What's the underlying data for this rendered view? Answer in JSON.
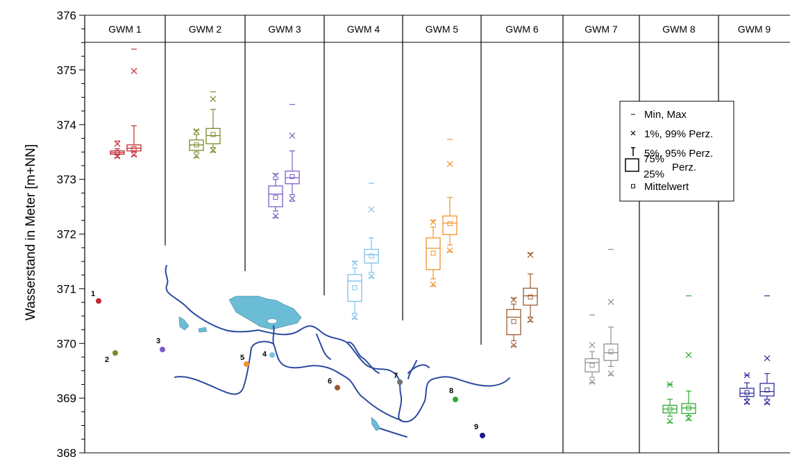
{
  "chart_data": {
    "type": "box",
    "ylabel": "Wasserstand in Meter [m+NN]",
    "ylim": [
      368,
      376
    ],
    "yticks": [
      "368",
      "369",
      "370",
      "371",
      "372",
      "373",
      "374",
      "375",
      "376"
    ],
    "panels": [
      {
        "name": "GWM 1",
        "color": "#c0272d",
        "boxes": [
          {
            "min": 373.4,
            "p1": 373.42,
            "p5": 373.45,
            "q1": 373.46,
            "median": 373.49,
            "q3": 373.52,
            "p95": 373.56,
            "p99": 373.65,
            "max": 373.7,
            "mean": 373.49
          },
          {
            "min": 373.43,
            "p1": 373.45,
            "p5": 373.5,
            "q1": 373.52,
            "median": 373.57,
            "q3": 373.63,
            "p95": 373.98,
            "p99": 374.98,
            "max": 375.38,
            "mean": 373.56
          }
        ]
      },
      {
        "name": "GWM 2",
        "color": "#7a8c2a",
        "boxes": [
          {
            "min": 373.4,
            "p1": 373.43,
            "p5": 373.5,
            "q1": 373.53,
            "median": 373.63,
            "q3": 373.72,
            "p95": 373.82,
            "p99": 373.88,
            "max": 373.9,
            "mean": 373.63
          },
          {
            "min": 373.5,
            "p1": 373.53,
            "p5": 373.58,
            "q1": 373.65,
            "median": 373.8,
            "q3": 373.93,
            "p95": 374.28,
            "p99": 374.47,
            "max": 374.6,
            "mean": 373.82
          }
        ]
      },
      {
        "name": "GWM 3",
        "color": "#7a5cc8",
        "boxes": [
          {
            "min": 372.3,
            "p1": 372.33,
            "p5": 372.42,
            "q1": 372.5,
            "median": 372.73,
            "q3": 372.88,
            "p95": 373.0,
            "p99": 373.07,
            "max": 373.1,
            "mean": 372.67
          },
          {
            "min": 372.6,
            "p1": 372.65,
            "p5": 372.72,
            "q1": 372.92,
            "median": 373.03,
            "q3": 373.15,
            "p95": 373.52,
            "p99": 373.8,
            "max": 374.37,
            "mean": 373.05
          }
        ]
      },
      {
        "name": "GWM 4",
        "color": "#7cc0e8",
        "boxes": [
          {
            "min": 370.45,
            "p1": 370.48,
            "p5": 370.55,
            "q1": 370.77,
            "median": 371.14,
            "q3": 371.26,
            "p95": 371.38,
            "p99": 371.47,
            "max": 371.5,
            "mean": 371.02
          },
          {
            "min": 371.2,
            "p1": 371.23,
            "p5": 371.3,
            "q1": 371.47,
            "median": 371.62,
            "q3": 371.72,
            "p95": 371.93,
            "p99": 372.45,
            "max": 372.93,
            "mean": 371.6
          }
        ]
      },
      {
        "name": "GWM 5",
        "color": "#f0922a",
        "boxes": [
          {
            "min": 371.05,
            "p1": 371.08,
            "p5": 371.18,
            "q1": 371.35,
            "median": 371.74,
            "q3": 371.93,
            "p95": 372.13,
            "p99": 372.22,
            "max": 372.25,
            "mean": 371.65
          },
          {
            "min": 371.68,
            "p1": 371.7,
            "p5": 371.8,
            "q1": 371.99,
            "median": 372.2,
            "q3": 372.33,
            "p95": 372.67,
            "p99": 373.28,
            "max": 373.73,
            "mean": 372.19
          }
        ]
      },
      {
        "name": "GWM 6",
        "color": "#9c5a2c",
        "boxes": [
          {
            "min": 369.95,
            "p1": 369.97,
            "p5": 370.05,
            "q1": 370.16,
            "median": 370.48,
            "q3": 370.62,
            "p95": 370.72,
            "p99": 370.8,
            "max": 370.83,
            "mean": 370.4
          },
          {
            "min": 370.4,
            "p1": 370.43,
            "p5": 370.48,
            "q1": 370.7,
            "median": 370.87,
            "q3": 371.01,
            "p95": 371.27,
            "p99": 371.62,
            "max": 371.65,
            "mean": 370.85
          }
        ]
      },
      {
        "name": "GWM 7",
        "color": "#909090",
        "boxes": [
          {
            "min": 369.28,
            "p1": 369.3,
            "p5": 369.38,
            "q1": 369.48,
            "median": 369.65,
            "q3": 369.72,
            "p95": 369.85,
            "p99": 369.97,
            "max": 370.52,
            "mean": 369.6
          },
          {
            "min": 369.42,
            "p1": 369.45,
            "p5": 369.58,
            "q1": 369.69,
            "median": 369.83,
            "q3": 369.99,
            "p95": 370.3,
            "p99": 370.76,
            "max": 371.72,
            "mean": 369.85
          }
        ]
      },
      {
        "name": "GWM 8",
        "color": "#2ea82e",
        "boxes": [
          {
            "min": 368.55,
            "p1": 368.58,
            "p5": 368.67,
            "q1": 368.73,
            "median": 368.8,
            "q3": 368.87,
            "p95": 368.98,
            "p99": 369.25,
            "max": 369.25,
            "mean": 368.8
          },
          {
            "min": 368.6,
            "p1": 368.63,
            "p5": 368.68,
            "q1": 368.72,
            "median": 368.82,
            "q3": 368.9,
            "p95": 369.13,
            "p99": 369.79,
            "max": 370.87,
            "mean": 368.82
          }
        ]
      },
      {
        "name": "GWM 9",
        "color": "#2c2c9c",
        "boxes": [
          {
            "min": 368.9,
            "p1": 368.93,
            "p5": 368.98,
            "q1": 369.03,
            "median": 369.09,
            "q3": 369.18,
            "p95": 369.28,
            "p99": 369.42,
            "max": 369.42,
            "mean": 369.1
          },
          {
            "min": 368.9,
            "p1": 368.92,
            "p5": 368.98,
            "q1": 369.04,
            "median": 369.12,
            "q3": 369.27,
            "p95": 369.45,
            "p99": 369.73,
            "max": 370.87,
            "mean": 369.15
          }
        ]
      }
    ],
    "legend": {
      "position": "right",
      "entries": [
        {
          "symbol": "–",
          "label": "Min, Max"
        },
        {
          "symbol": "×",
          "label": "1%, 99% Perz."
        },
        {
          "symbol": "T",
          "label": "5%, 95% Perz."
        },
        {
          "symbol": "box",
          "upper": "75%",
          "lower": "25%",
          "label": "Perz."
        },
        {
          "symbol": "□",
          "label": "Mittelwert"
        }
      ]
    },
    "map_inset": {
      "river_color": "#2b4aa0",
      "lake_color": "#6bbdd6",
      "wells": [
        {
          "label": "1",
          "color": "#c0272d"
        },
        {
          "label": "2",
          "color": "#7a8c2a"
        },
        {
          "label": "3",
          "color": "#7a5cc8"
        },
        {
          "label": "4",
          "color": "#7cc0e8"
        },
        {
          "label": "5",
          "color": "#f0922a"
        },
        {
          "label": "6",
          "color": "#9c5a2c"
        },
        {
          "label": "7",
          "color": "#707070"
        },
        {
          "label": "8",
          "color": "#2ea82e"
        },
        {
          "label": "9",
          "color": "#1a1a8c"
        }
      ]
    }
  }
}
